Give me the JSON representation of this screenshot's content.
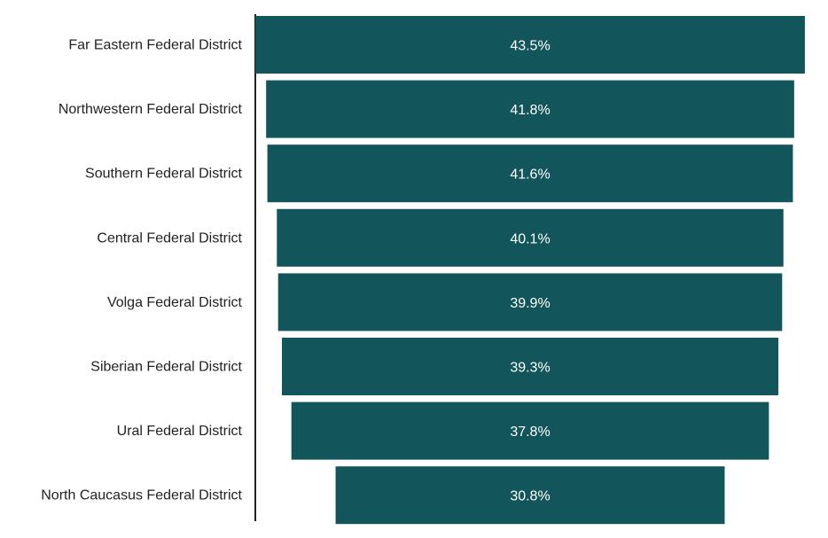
{
  "chart_data": {
    "type": "bar",
    "orientation": "horizontal",
    "layout": "funnel-centered",
    "categories": [
      "Far Eastern Federal District",
      "Northwestern Federal District",
      "Southern Federal District",
      "Central Federal District",
      "Volga Federal District",
      "Siberian Federal District",
      "Ural Federal District",
      "North Caucasus Federal District"
    ],
    "values": [
      43.5,
      41.8,
      41.6,
      40.1,
      39.9,
      39.3,
      37.8,
      30.8
    ],
    "value_labels": [
      "43.5%",
      "41.8%",
      "41.6%",
      "40.1%",
      "39.9%",
      "39.3%",
      "37.8%",
      "30.8%"
    ],
    "title": "",
    "xlabel": "",
    "ylabel": "",
    "grid": false,
    "legend": "none",
    "bar_color": "#12555a",
    "label_color": "#ffffff",
    "axis_color": "#222222"
  }
}
